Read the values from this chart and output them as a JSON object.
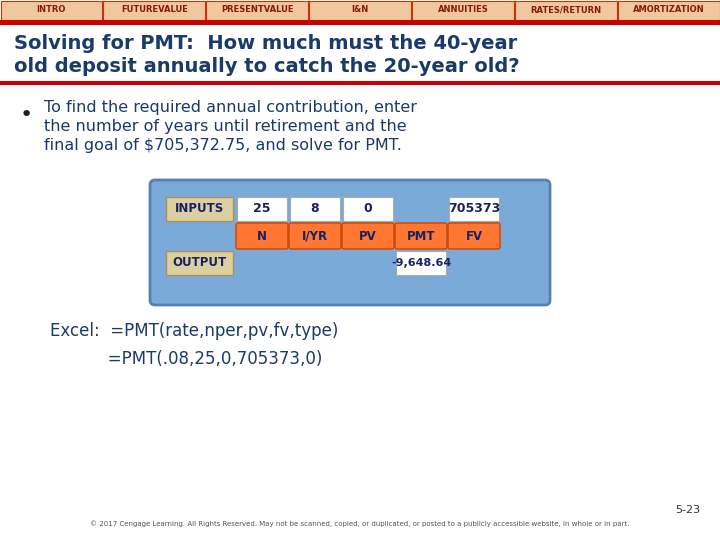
{
  "nav_items": [
    "INTRO",
    "FUTUREVALUE",
    "PRESENTVALUE",
    "I&N",
    "ANNUITIES",
    "RATES/RETURN",
    "AMORTIZATION"
  ],
  "nav_bg": "#F0C8A0",
  "nav_border": "#CC3300",
  "nav_text_color": "#8B1A00",
  "header_bar_color": "#CC0000",
  "title_line1": "Solving for PMT:  How much must the 40-year",
  "title_line2": "old deposit annually to catch the 20-year old?",
  "title_color": "#1A3A6A",
  "bullet_text_line1": "To find the required annual contribution, enter",
  "bullet_text_line2": "the number of years until retirement and the",
  "bullet_text_line3": "final goal of $705,372.75, and solve for PMT.",
  "calc_bg": "#7BAAD8",
  "calc_border": "#5580B0",
  "inputs_label": "INPUTS",
  "output_label": "OUTPUT",
  "label_bg": "#DDD0A0",
  "input_values": [
    "25",
    "8",
    "0",
    "",
    "705373"
  ],
  "output_value": "-9,648.64",
  "key_labels": [
    "N",
    "I/YR",
    "PV",
    "PMT",
    "FV"
  ],
  "key_bg": "#FF7733",
  "key_border": "#CC4400",
  "key_text": "#1A2060",
  "white_box_bg": "#FFFFFF",
  "excel_line1": "Excel:  =PMT(rate,nper,pv,fv,type)",
  "excel_line2": "           =PMT(.08,25,0,705373,0)",
  "footer_text": "5-23",
  "footer_copyright": "© 2017 Cengage Learning. All Rights Reserved. May not be scanned, copied, or duplicated, or posted to a publicly accessible website, in whole or in part.",
  "bg_color": "#FFFFFF",
  "text_color": "#1A3A6A"
}
